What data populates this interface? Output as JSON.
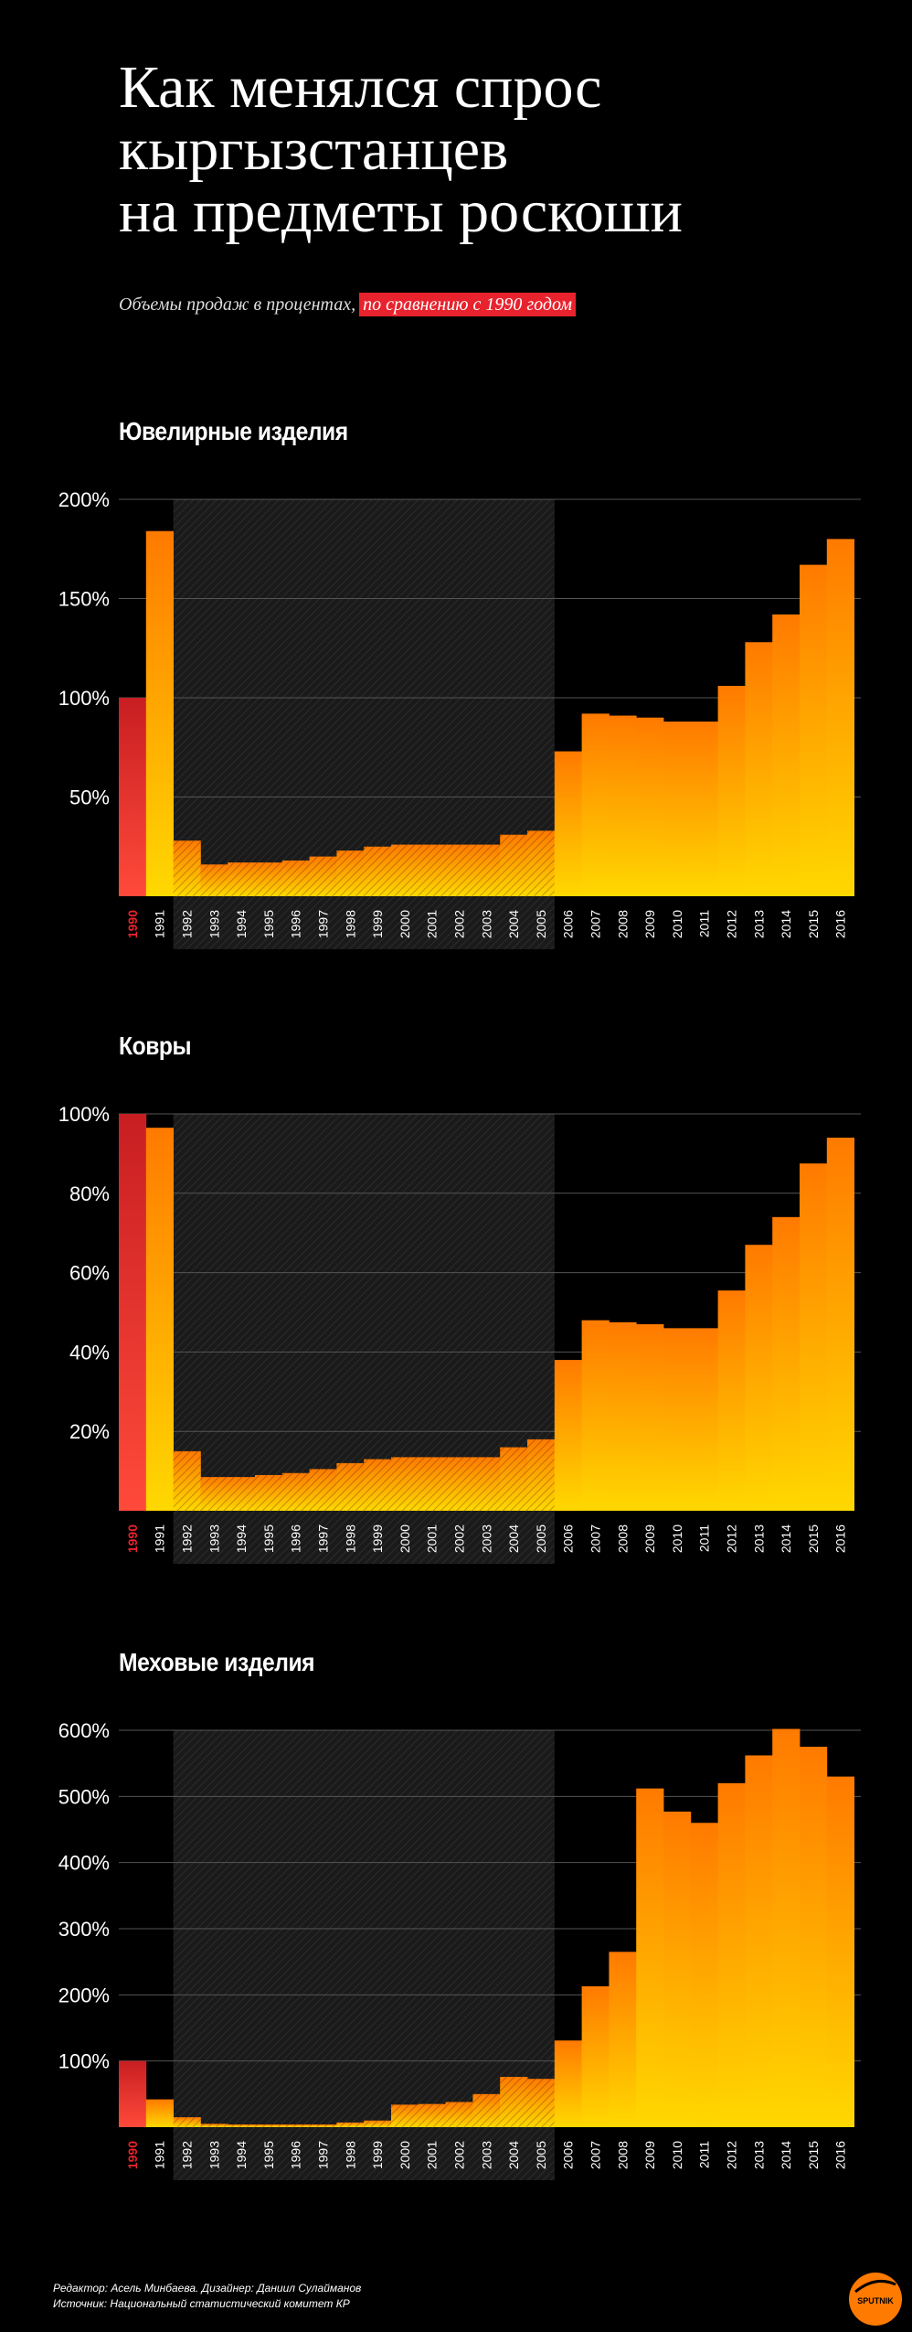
{
  "title_lines": [
    "Как менялся спрос",
    "кыргызстанцев",
    "на предметы роскоши"
  ],
  "subtitle": {
    "text": "Объемы продаж в процентах,",
    "highlight": "по сравнению с 1990 годом"
  },
  "colors": {
    "baseline_bar_top": "#c81e22",
    "baseline_bar_bottom": "#ff4a3a",
    "bar_top": "#ff7a00",
    "bar_bottom": "#ffd800",
    "highlight": "#e8232d",
    "shaded_period": "#1a1a1a"
  },
  "chart_data": [
    {
      "type": "bar",
      "title": "Ювелирные изделия",
      "categories": [
        "1990",
        "1991",
        "1992",
        "1993",
        "1994",
        "1995",
        "1996",
        "1997",
        "1998",
        "1999",
        "2000",
        "2001",
        "2002",
        "2003",
        "2004",
        "2005",
        "2006",
        "2007",
        "2008",
        "2009",
        "2010",
        "2011",
        "2012",
        "2013",
        "2014",
        "2015",
        "2016"
      ],
      "values": [
        100,
        184,
        28,
        16,
        17,
        17,
        18,
        20,
        23,
        25,
        26,
        26,
        26,
        26,
        31,
        33,
        73,
        92,
        91,
        90,
        88,
        88,
        106,
        128,
        142,
        167,
        180
      ],
      "yticks": [
        50,
        100,
        150,
        200
      ],
      "tick_suffix": "%",
      "ylim": [
        0,
        200
      ],
      "shaded_period": [
        "1992",
        "2005"
      ],
      "highlighted_category": "1990"
    },
    {
      "type": "bar",
      "title": "Ковры",
      "categories": [
        "1990",
        "1991",
        "1992",
        "1993",
        "1994",
        "1995",
        "1996",
        "1997",
        "1998",
        "1999",
        "2000",
        "2001",
        "2002",
        "2003",
        "2004",
        "2005",
        "2006",
        "2007",
        "2008",
        "2009",
        "2010",
        "2011",
        "2012",
        "2013",
        "2014",
        "2015",
        "2016"
      ],
      "values": [
        100,
        96.5,
        15,
        8.5,
        8.5,
        9,
        9.5,
        10.5,
        12,
        13,
        13.5,
        13.5,
        13.5,
        13.5,
        16,
        18,
        38,
        48,
        47.5,
        47,
        46,
        46,
        55.5,
        67,
        74,
        87.5,
        94
      ],
      "yticks": [
        20,
        40,
        60,
        80,
        100
      ],
      "tick_suffix": "%",
      "ylim": [
        0,
        100
      ],
      "shaded_period": [
        "1992",
        "2005"
      ],
      "highlighted_category": "1990"
    },
    {
      "type": "bar",
      "title": "Меховые изделия",
      "categories": [
        "1990",
        "1991",
        "1992",
        "1993",
        "1994",
        "1995",
        "1996",
        "1997",
        "1998",
        "1999",
        "2000",
        "2001",
        "2002",
        "2003",
        "2004",
        "2005",
        "2006",
        "2007",
        "2008",
        "2009",
        "2010",
        "2011",
        "2012",
        "2013",
        "2014",
        "2015",
        "2016"
      ],
      "values": [
        100,
        42,
        15,
        5,
        4,
        4,
        4,
        4,
        7,
        10,
        34,
        35,
        38,
        50,
        76,
        73,
        131,
        213,
        265,
        512,
        477,
        460,
        520,
        562,
        602,
        575,
        530
      ],
      "yticks": [
        100,
        200,
        300,
        400,
        500,
        600
      ],
      "tick_suffix": "%",
      "ylim": [
        0,
        600
      ],
      "shaded_period": [
        "1992",
        "2005"
      ],
      "highlighted_category": "1990"
    }
  ],
  "footer": {
    "line1": "Редактор: Асель Минбаева. Дизайнер: Даниил Сулайманов",
    "line2": "Источник: Национальный статистический комитет КР"
  },
  "logo_text": "SPUTNIK"
}
